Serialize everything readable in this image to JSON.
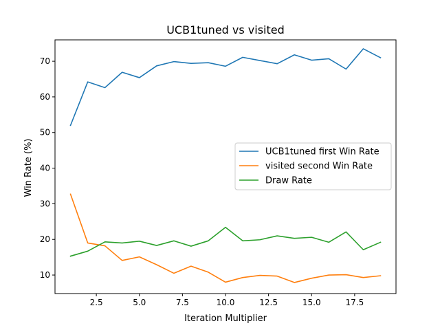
{
  "chart_data": {
    "type": "line",
    "title": "UCB1tuned vs visited",
    "xlabel": "Iteration Multiplier",
    "ylabel": "Win Rate (%)",
    "xlim": [
      0.1,
      19.9
    ],
    "ylim": [
      4.8,
      76.0
    ],
    "xticks": [
      2.5,
      5.0,
      7.5,
      10.0,
      12.5,
      15.0,
      17.5
    ],
    "xtick_labels": [
      "2.5",
      "5.0",
      "7.5",
      "10.0",
      "12.5",
      "15.0",
      "17.5"
    ],
    "yticks": [
      10,
      20,
      30,
      40,
      50,
      60,
      70
    ],
    "ytick_labels": [
      "10",
      "20",
      "30",
      "40",
      "50",
      "60",
      "70"
    ],
    "grid": false,
    "legend_position": "center-right",
    "x": [
      1,
      2,
      3,
      4,
      5,
      6,
      7,
      8,
      9,
      10,
      11,
      12,
      13,
      14,
      15,
      16,
      17,
      18,
      19
    ],
    "series": [
      {
        "name": "UCB1tuned first Win Rate",
        "color": "#1f77b4",
        "values": [
          52.0,
          64.2,
          62.6,
          66.9,
          65.4,
          68.7,
          69.9,
          69.4,
          69.6,
          68.6,
          71.1,
          70.2,
          69.3,
          71.8,
          70.3,
          70.7,
          67.8,
          73.5,
          71.0
        ]
      },
      {
        "name": "visited second Win Rate",
        "color": "#ff7f0e",
        "values": [
          32.7,
          19.0,
          18.2,
          14.1,
          15.1,
          12.9,
          10.5,
          12.5,
          10.8,
          8.0,
          9.3,
          9.9,
          9.7,
          7.9,
          9.1,
          10.0,
          10.1,
          9.3,
          9.8
        ]
      },
      {
        "name": "Draw Rate",
        "color": "#2ca02c",
        "values": [
          15.3,
          16.7,
          19.3,
          19.0,
          19.5,
          18.3,
          19.6,
          18.1,
          19.6,
          23.4,
          19.6,
          19.9,
          21.0,
          20.3,
          20.6,
          19.2,
          22.1,
          17.1,
          19.2
        ]
      }
    ]
  }
}
